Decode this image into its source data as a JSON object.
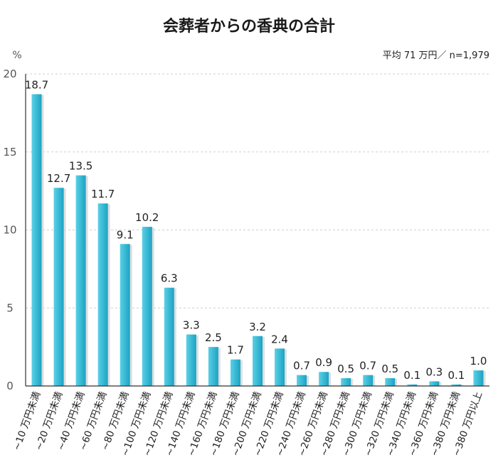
{
  "chart_data": {
    "type": "bar",
    "title": "会葬者からの香典の合計",
    "note": "平均 71 万円／ n=1,979",
    "unit_label": "%",
    "ylim": [
      0,
      20
    ],
    "yticks": [
      0,
      5,
      10,
      15,
      20
    ],
    "grid": true,
    "categories": [
      "~10 万円未満",
      "~20 万円未満",
      "~40 万円未満",
      "~60 万円未満",
      "~80 万円未満",
      "~100 万円未満",
      "~120 万円未満",
      "~140 万円未満",
      "~160 万円未満",
      "~180 万円未満",
      "~200 万円未満",
      "~220 万円未満",
      "~240 万円未満",
      "~260 万円未満",
      "~280 万円未満",
      "~300 万円未満",
      "~320 万円未満",
      "~340 万円未満",
      "~360 万円未満",
      "~380 万円未満",
      "~380 万円以上"
    ],
    "values": [
      18.7,
      12.7,
      13.5,
      11.7,
      9.1,
      10.2,
      6.3,
      3.3,
      2.5,
      1.7,
      3.2,
      2.4,
      0.7,
      0.9,
      0.5,
      0.7,
      0.5,
      0.1,
      0.3,
      0.1,
      1.0
    ],
    "value_labels": [
      "18.7",
      "12.7",
      "13.5",
      "11.7",
      "9.1",
      "10.2",
      "6.3",
      "3.3",
      "2.5",
      "1.7",
      "3.2",
      "2.4",
      "0.7",
      "0.9",
      "0.5",
      "0.7",
      "0.5",
      "0.1",
      "0.3",
      "0.1",
      "1.0"
    ],
    "colors": {
      "bar_light": "#5ad0e6",
      "bar_dark": "#1ba3c4",
      "bar_shadow": "#dedede",
      "grid": "#cfcfcf",
      "axis": "#333333"
    }
  }
}
